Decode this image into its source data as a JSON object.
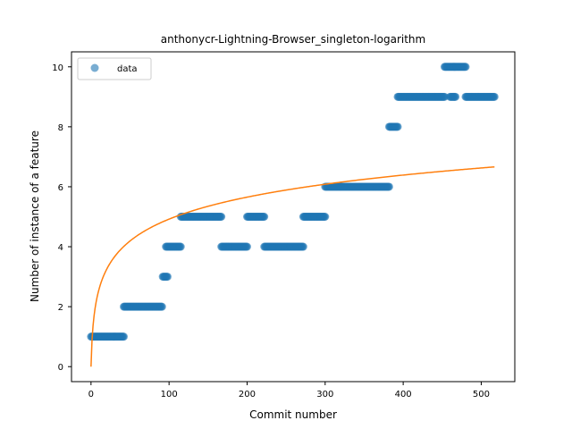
{
  "chart_data": {
    "type": "scatter",
    "title": "anthonycr-Lightning-Browser_singleton-logarithm",
    "xlabel": "Commit number",
    "ylabel": "Number of instance of a feature",
    "xlim": [
      -25,
      543
    ],
    "ylim": [
      -0.5,
      10.5
    ],
    "xticks": [
      0,
      100,
      200,
      300,
      400,
      500
    ],
    "yticks": [
      0,
      2,
      4,
      6,
      8,
      10
    ],
    "grid": false,
    "legend": {
      "position": "top-left",
      "entries": [
        "data"
      ]
    },
    "colors": {
      "data": "#1f77b4",
      "fit": "#ff7f0e"
    },
    "series": [
      {
        "name": "data",
        "kind": "scatter",
        "segments": [
          {
            "x_start": 0,
            "x_end": 42,
            "y": 1
          },
          {
            "x_start": 42,
            "x_end": 91,
            "y": 2
          },
          {
            "x_start": 92,
            "x_end": 98,
            "y": 3
          },
          {
            "x_start": 96,
            "x_end": 115,
            "y": 4
          },
          {
            "x_start": 115,
            "x_end": 167,
            "y": 5
          },
          {
            "x_start": 167,
            "x_end": 200,
            "y": 4
          },
          {
            "x_start": 200,
            "x_end": 222,
            "y": 5
          },
          {
            "x_start": 222,
            "x_end": 272,
            "y": 4
          },
          {
            "x_start": 272,
            "x_end": 300,
            "y": 5
          },
          {
            "x_start": 300,
            "x_end": 382,
            "y": 6
          },
          {
            "x_start": 382,
            "x_end": 393,
            "y": 8
          },
          {
            "x_start": 393,
            "x_end": 453,
            "y": 9
          },
          {
            "x_start": 453,
            "x_end": 480,
            "y": 10
          },
          {
            "x_start": 460,
            "x_end": 467,
            "y": 9
          },
          {
            "x_start": 480,
            "x_end": 517,
            "y": 9
          }
        ]
      },
      {
        "kind": "line",
        "model": "logarithmic",
        "a": 0,
        "b": 1.066,
        "x_range": [
          0,
          517
        ]
      }
    ]
  }
}
